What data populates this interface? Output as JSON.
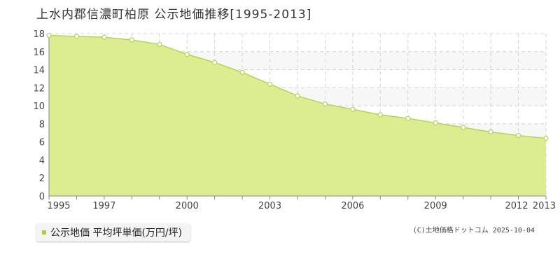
{
  "title": "上水内郡信濃町柏原 公示地価推移[1995-2013]",
  "legend": {
    "label": "公示地価 平均坪単価(万円/坪)"
  },
  "credit": "(C)土地価格ドットコム 2025-10-04",
  "colors": {
    "fill": "#dcec90",
    "line": "#b3d35a",
    "marker_stroke": "#b3d35a",
    "marker_fill": "#ffffff",
    "grid": "#d4d4d4",
    "plot_bg_a": "#ffffff",
    "plot_bg_b": "#f7f7f7",
    "legend_swatch": "#a8cf3c"
  },
  "chart_data": {
    "type": "area",
    "x": [
      1995,
      1996,
      1997,
      1998,
      1999,
      2000,
      2001,
      2002,
      2003,
      2004,
      2005,
      2006,
      2007,
      2008,
      2009,
      2010,
      2011,
      2012,
      2013
    ],
    "series": [
      {
        "name": "公示地価 平均坪単価(万円/坪)",
        "values": [
          17.8,
          17.7,
          17.6,
          17.3,
          16.8,
          15.7,
          14.8,
          13.7,
          12.4,
          11.1,
          10.2,
          9.6,
          9.0,
          8.6,
          8.1,
          7.6,
          7.1,
          6.7,
          6.4
        ]
      }
    ],
    "xlim": [
      1995,
      2013
    ],
    "ylim": [
      0,
      18
    ],
    "xticks": [
      "1995",
      "1997",
      "2000",
      "2003",
      "2006",
      "2009",
      "2012",
      "2013"
    ],
    "yticks": [
      "0",
      "2",
      "4",
      "6",
      "8",
      "10",
      "12",
      "14",
      "16",
      "18"
    ],
    "xlabel": "",
    "ylabel": "",
    "grid": true,
    "legend_position": "bottom-left"
  }
}
